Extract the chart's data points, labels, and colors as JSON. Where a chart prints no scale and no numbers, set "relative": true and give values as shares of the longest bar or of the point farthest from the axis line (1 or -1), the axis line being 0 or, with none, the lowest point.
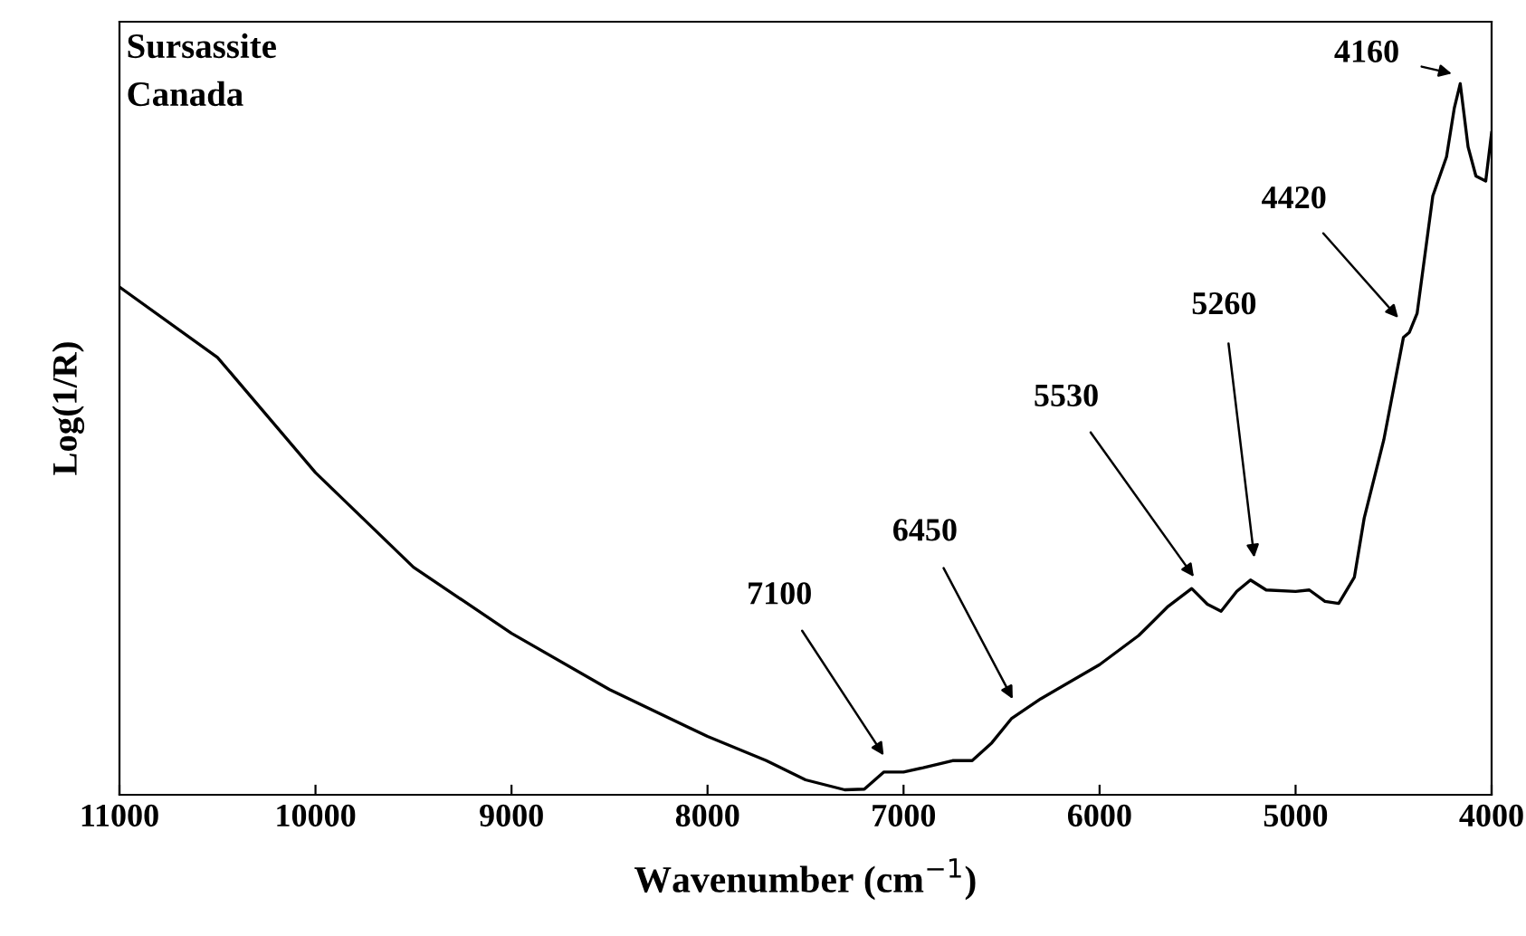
{
  "chart_data": {
    "type": "line",
    "relative": true,
    "xlabel": "Wavenumber (cm$^{−1}$)",
    "ylabel": "Log(1/R)",
    "xlim": [
      11000,
      4000
    ],
    "xticks": [
      11000,
      10000,
      9000,
      8000,
      7000,
      6000,
      5000,
      4000
    ],
    "tick_labels": "x",
    "grid": false,
    "legend": false,
    "series": [
      {
        "color": "#000000",
        "x": [
          11000,
          10500,
          10000,
          9500,
          9000,
          8500,
          8000,
          7700,
          7500,
          7300,
          7200,
          7100,
          7000,
          6900,
          6750,
          6650,
          6550,
          6450,
          6300,
          6000,
          5800,
          5650,
          5530,
          5450,
          5380,
          5300,
          5230,
          5150,
          5000,
          4930,
          4850,
          4780,
          4700,
          4650,
          4550,
          4450,
          4420,
          4380,
          4300,
          4230,
          4190,
          4160,
          4120,
          4080,
          4030,
          4000
        ],
        "values": [
          0.714,
          0.615,
          0.453,
          0.32,
          0.227,
          0.148,
          0.082,
          0.048,
          0.021,
          0.007,
          0.008,
          0.032,
          0.032,
          0.038,
          0.048,
          0.048,
          0.073,
          0.107,
          0.135,
          0.183,
          0.224,
          0.265,
          0.29,
          0.268,
          0.258,
          0.286,
          0.302,
          0.288,
          0.286,
          0.288,
          0.272,
          0.269,
          0.306,
          0.389,
          0.499,
          0.643,
          0.65,
          0.677,
          0.842,
          0.897,
          0.966,
          1.0,
          0.911,
          0.87,
          0.863,
          0.931
        ]
      }
    ],
    "annotations": [
      "Sursassite",
      "Canada",
      "4160",
      "4420",
      "5260",
      "5530",
      "6450",
      "7100"
    ]
  }
}
